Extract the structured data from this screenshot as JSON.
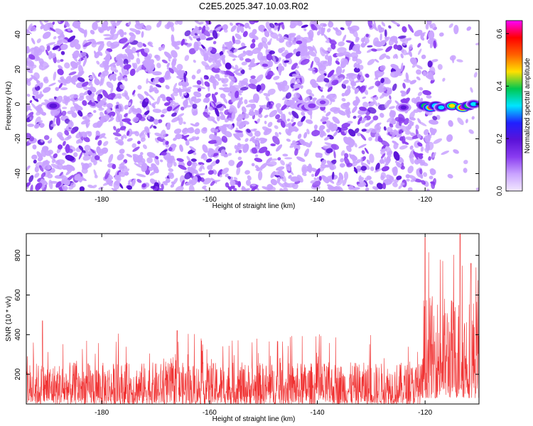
{
  "title": "C2E5.2025.347.10.03.R02",
  "chart_data": [
    {
      "type": "heatmap",
      "title": "C2E5.2025.347.10.03.R02",
      "xlabel": "Height of straight line (km)",
      "ylabel": "Frequency (Hz)",
      "xlim": [
        -194,
        -110
      ],
      "ylim": [
        -50,
        48
      ],
      "x_ticks": [
        {
          "value": -180,
          "label": "-180"
        },
        {
          "value": -160,
          "label": "-160"
        },
        {
          "value": -140,
          "label": "-140"
        },
        {
          "value": -120,
          "label": "-120"
        }
      ],
      "y_ticks": [
        {
          "value": -40,
          "label": "-40"
        },
        {
          "value": -20,
          "label": "-20"
        },
        {
          "value": 0,
          "label": "0"
        },
        {
          "value": 20,
          "label": "20"
        },
        {
          "value": 40,
          "label": "40"
        }
      ],
      "colorbar": {
        "label": "Normalized spectral amplitude",
        "range": [
          0,
          0.65
        ],
        "ticks": [
          {
            "value": 0.0,
            "label": "0.0"
          },
          {
            "value": 0.2,
            "label": "0.2"
          },
          {
            "value": 0.4,
            "label": "0.4"
          },
          {
            "value": 0.6,
            "label": "0.6"
          }
        ],
        "colors": [
          "#f2e8ff",
          "#c9a3ff",
          "#8a3cf0",
          "#5a12d8",
          "#2020ff",
          "#00e5ff",
          "#00c850",
          "#ffe000",
          "#ff6000",
          "#ff0000",
          "#ff00ff"
        ]
      },
      "noise_level": 0.1,
      "empty_region_x_from": -118,
      "features": [
        {
          "x": -189,
          "y": -1,
          "amplitude": 0.22
        },
        {
          "x": -143,
          "y": -1,
          "amplitude": 0.12
        },
        {
          "x": -142,
          "y": -2,
          "amplitude": 0.14
        },
        {
          "x": -141,
          "y": -1,
          "amplitude": 0.12
        },
        {
          "x": -139,
          "y": 1,
          "amplitude": 0.1
        },
        {
          "x": -124,
          "y": -2,
          "amplitude": 0.18
        },
        {
          "x": -120,
          "y": -1,
          "amplitude": 0.4
        },
        {
          "x": -119,
          "y": -2,
          "amplitude": 0.5
        },
        {
          "x": -118,
          "y": -1,
          "amplitude": 0.35
        },
        {
          "x": -117,
          "y": -2,
          "amplitude": 0.3
        },
        {
          "x": -115,
          "y": -1,
          "amplitude": 0.45
        },
        {
          "x": -113,
          "y": -2,
          "amplitude": 0.62
        },
        {
          "x": -112,
          "y": -1,
          "amplitude": 0.4
        },
        {
          "x": -111,
          "y": 0,
          "amplitude": 0.3
        }
      ]
    },
    {
      "type": "line",
      "xlabel": "Height of straight line (km)",
      "ylabel": "SNR (10 * v/v)",
      "xlim": [
        -194,
        -110
      ],
      "ylim": [
        50,
        910
      ],
      "x_ticks": [
        {
          "value": -180,
          "label": "-180"
        },
        {
          "value": -160,
          "label": "-160"
        },
        {
          "value": -140,
          "label": "-140"
        },
        {
          "value": -120,
          "label": "-120"
        }
      ],
      "y_ticks": [
        {
          "value": 200,
          "label": "200"
        },
        {
          "value": 400,
          "label": "400"
        },
        {
          "value": 600,
          "label": "600"
        },
        {
          "value": 800,
          "label": "800"
        }
      ],
      "color": "#f03030",
      "series_summary": [
        {
          "x_from": -194,
          "x_to": -120.5,
          "baseline": 150,
          "noise_range": [
            50,
            260
          ],
          "spike_max": 470
        },
        {
          "x_from": -120.5,
          "x_to": -110,
          "baseline": 300,
          "noise_range": [
            80,
            600
          ],
          "spike_max": 910
        }
      ],
      "peaks": [
        {
          "x": -191,
          "y": 470
        },
        {
          "x": -166,
          "y": 420
        },
        {
          "x": -120,
          "y": 890
        },
        {
          "x": -113.5,
          "y": 910
        },
        {
          "x": -111.5,
          "y": 760
        }
      ]
    }
  ]
}
